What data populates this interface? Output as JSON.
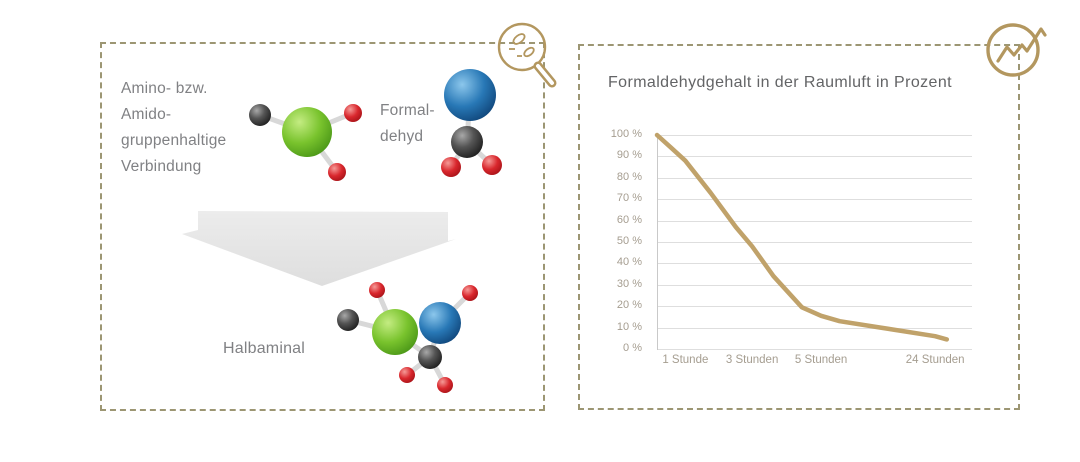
{
  "colors": {
    "accent_gold": "#b3975f",
    "border_dash": "#9c9673",
    "chart_line": "#c0a26a",
    "title_gray": "#636466",
    "text_gray": "#808184",
    "tick_gray": "#a59d90",
    "grid_gray": "#dedede",
    "axis_gray": "#c9c9c9",
    "arrow_gray": "#e4e4e5"
  },
  "left_panel": {
    "reactant_label_lines": [
      "Amino- bzw.",
      "Amido-",
      "gruppenhaltige",
      "Verbindung"
    ],
    "formaldehyde_label_lines": [
      "Formal-",
      "dehyd"
    ],
    "product_label": "Halbaminal",
    "icon": "molecules-magnifier-icon"
  },
  "right_panel": {
    "title": "Formaldehydgehalt in der Raumluft in Prozent",
    "icon": "trend-line-circle-icon"
  },
  "chart_data": {
    "type": "line",
    "title": "Formaldehydgehalt in der Raumluft in Prozent",
    "xlabel": "",
    "ylabel": "",
    "ylim": [
      0,
      100
    ],
    "grid": "horizontal",
    "legend": "none",
    "line_color": "#c0a26a",
    "y_tick_labels": [
      "100 %",
      "90 %",
      "80 %",
      "70 %",
      "60 %",
      "50 %",
      "40 %",
      "30 %",
      "20 %",
      "10 %",
      "0 %"
    ],
    "y_tick_values": [
      100,
      90,
      80,
      70,
      60,
      50,
      40,
      30,
      20,
      10,
      0
    ],
    "x_tick_labels": [
      "1 Stunde",
      "3 Stunden",
      "5 Stunden",
      "24 Stunden"
    ],
    "x_tick_positions": [
      0.09,
      0.302,
      0.521,
      0.883
    ],
    "values_at_ticks": {
      "1 Stunde": 88,
      "3 Stunden": 48,
      "5 Stunden": 15,
      "24 Stunden": 5
    },
    "points": [
      {
        "x": 0.0,
        "y": 100
      },
      {
        "x": 0.045,
        "y": 94
      },
      {
        "x": 0.09,
        "y": 88
      },
      {
        "x": 0.17,
        "y": 73
      },
      {
        "x": 0.25,
        "y": 57
      },
      {
        "x": 0.302,
        "y": 48
      },
      {
        "x": 0.37,
        "y": 34
      },
      {
        "x": 0.46,
        "y": 19.5
      },
      {
        "x": 0.521,
        "y": 15.5
      },
      {
        "x": 0.58,
        "y": 13
      },
      {
        "x": 0.71,
        "y": 10
      },
      {
        "x": 0.883,
        "y": 6
      },
      {
        "x": 0.92,
        "y": 4.5
      }
    ]
  }
}
